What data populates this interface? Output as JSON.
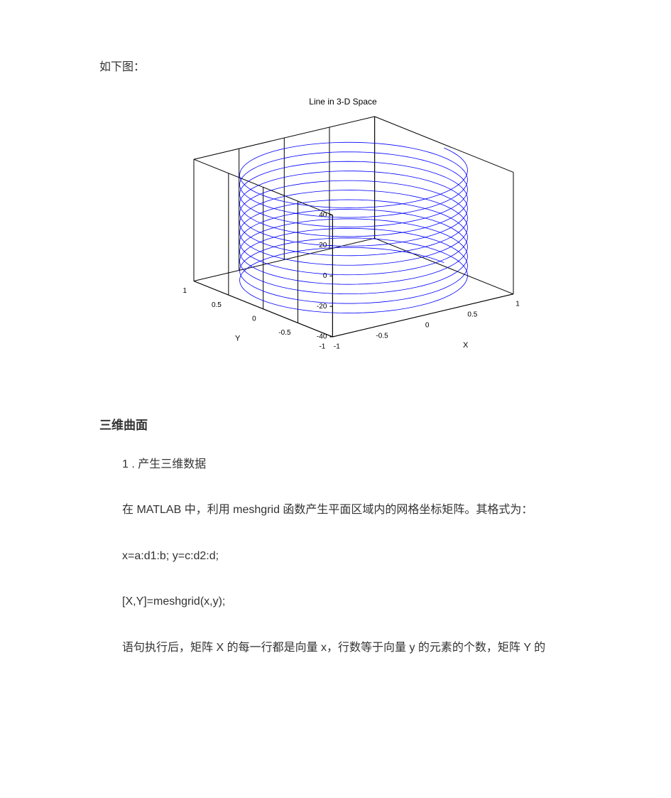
{
  "text": {
    "intro_line": "如下图：",
    "section_heading": "三维曲面",
    "p1": "1 . 产生三维数据",
    "p2": "在 MATLAB 中，利用 meshgrid 函数产生平面区域内的网格坐标矩阵。其格式为：",
    "p3": "x=a:d1:b;  y=c:d2:d;",
    "p4": "[X,Y]=meshgrid(x,y);",
    "p5": "语句执行后，矩阵 X 的每一行都是向量 x，行数等于向量 y 的元素的个数，矩阵 Y 的"
  },
  "chart": {
    "type": "3d-line",
    "title": "Line  in  3-D  Space",
    "title_fontsize": 12,
    "background_color": "#ffffff",
    "box_edge_color": "#000000",
    "grid_color": "#000000",
    "axis_font_size": 11,
    "tick_font_size": 10,
    "line_color": "#0000ff",
    "line_width": 0.8,
    "x_axis": {
      "label": "X",
      "ticks": [
        -1,
        -0.5,
        0,
        0.5,
        1
      ],
      "lim": [
        -1,
        1
      ]
    },
    "y_axis": {
      "label": "Y",
      "ticks": [
        -1,
        -0.5,
        0,
        0.5,
        1
      ],
      "lim": [
        -1,
        1
      ]
    },
    "z_axis": {
      "label": "",
      "ticks": [
        -40,
        -20,
        0,
        20,
        40
      ],
      "lim": [
        -40,
        40
      ]
    },
    "parametric": {
      "description": "x=cos(t), y=sin(t), z=t, t in [-12π,12π], ~1000 samples",
      "n_points": 1000,
      "t_min": -37.699,
      "t_max": 37.699
    },
    "view": {
      "azimuth_deg": -37.5,
      "elevation_deg": 30
    }
  }
}
